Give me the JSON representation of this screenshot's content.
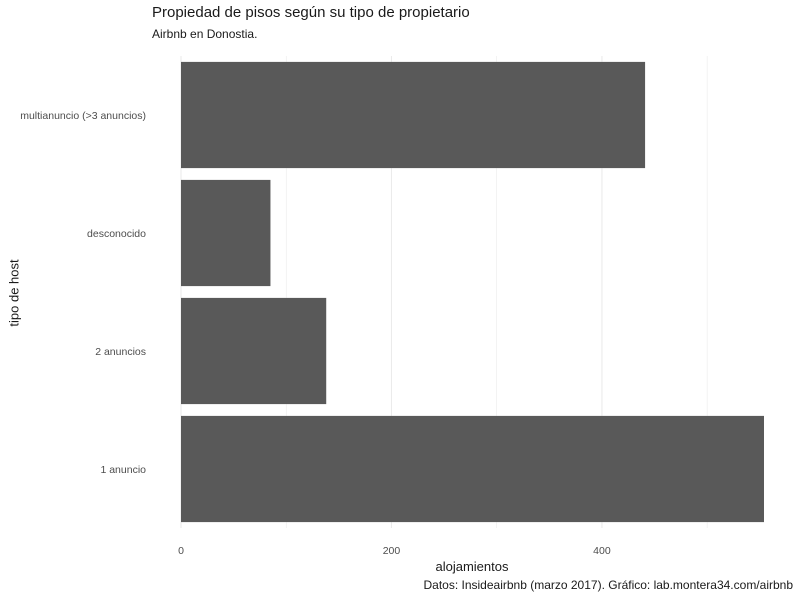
{
  "chart_data": {
    "type": "bar",
    "orientation": "horizontal",
    "title": "Propiedad de pisos según su tipo de propietario",
    "subtitle": "Airbnb en Donostia.",
    "caption": "Datos: Insideairbnb (marzo 2017). Gráfico: lab.montera34.com/airbnb",
    "xlabel": "alojamientos",
    "ylabel": "tipo de host",
    "categories": [
      "1 anuncio",
      "2 anuncios",
      "desconocido",
      "multianuncio (>3 anuncios)"
    ],
    "values": [
      554,
      138,
      85,
      441
    ],
    "xlim": [
      0,
      554
    ],
    "xticks": [
      0,
      200,
      400
    ],
    "grid": true,
    "bar_color": "#595959",
    "grid_color": "#ebebeb"
  }
}
